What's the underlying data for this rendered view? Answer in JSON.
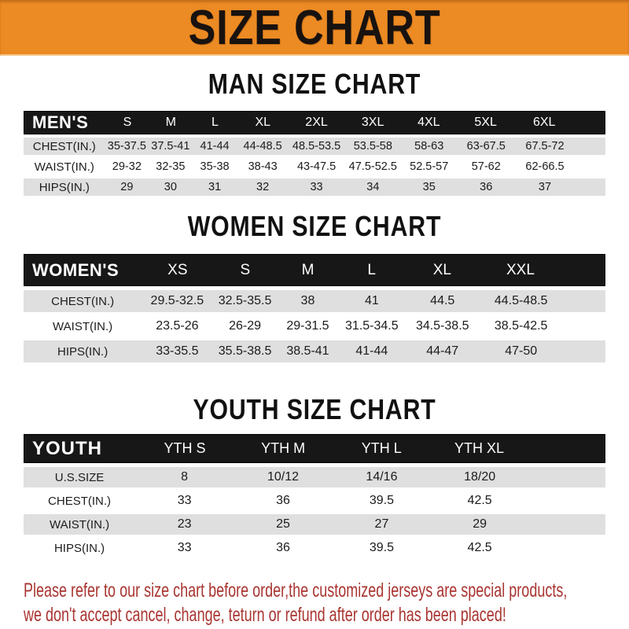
{
  "banner": {
    "title": "SIZE CHART",
    "bg_color": "#ec8a23",
    "text_color": "#181210"
  },
  "sections": [
    {
      "heading": "MAN SIZE CHART",
      "header_label": "MEN'S",
      "columns": [
        "S",
        "M",
        "L",
        "XL",
        "2XL",
        "3XL",
        "4XL",
        "5XL",
        "6XL"
      ],
      "rows": [
        {
          "label": "CHEST(IN.)",
          "values": [
            "35-37.5",
            "37.5-41",
            "41-44",
            "44-48.5",
            "48.5-53.5",
            "53.5-58",
            "58-63",
            "63-67.5",
            "67.5-72"
          ]
        },
        {
          "label": "WAIST(IN.)",
          "values": [
            "29-32",
            "32-35",
            "35-38",
            "38-43",
            "43-47.5",
            "47.5-52.5",
            "52.5-57",
            "57-62",
            "62-66.5"
          ]
        },
        {
          "label": "HIPS(IN.)",
          "values": [
            "29",
            "30",
            "31",
            "32",
            "33",
            "34",
            "35",
            "36",
            "37"
          ]
        }
      ]
    },
    {
      "heading": "WOMEN SIZE CHART",
      "header_label": "WOMEN'S",
      "columns": [
        "XS",
        "S",
        "M",
        "L",
        "XL",
        "XXL"
      ],
      "rows": [
        {
          "label": "CHEST(IN.)",
          "values": [
            "29.5-32.5",
            "32.5-35.5",
            "38",
            "41",
            "44.5",
            "44.5-48.5"
          ]
        },
        {
          "label": "WAIST(IN.)",
          "values": [
            "23.5-26",
            "26-29",
            "29-31.5",
            "31.5-34.5",
            "34.5-38.5",
            "38.5-42.5"
          ]
        },
        {
          "label": "HIPS(IN.)",
          "values": [
            "33-35.5",
            "35.5-38.5",
            "38.5-41",
            "41-44",
            "44-47",
            "47-50"
          ]
        }
      ]
    },
    {
      "heading": "YOUTH SIZE CHART",
      "header_label": "YOUTH",
      "columns": [
        "YTH S",
        "YTH M",
        "YTH L",
        "YTH XL"
      ],
      "rows": [
        {
          "label": "U.S.SIZE",
          "values": [
            "8",
            "10/12",
            "14/16",
            "18/20"
          ]
        },
        {
          "label": "CHEST(IN.)",
          "values": [
            "33",
            "36",
            "39.5",
            "42.5"
          ]
        },
        {
          "label": "WAIST(IN.)",
          "values": [
            "23",
            "25",
            "27",
            "29"
          ]
        },
        {
          "label": "HIPS(IN.)",
          "values": [
            "33",
            "36",
            "39.5",
            "42.5"
          ]
        }
      ]
    }
  ],
  "footer": {
    "line1": "Please refer to our size chart before order,the customized jerseys are special products,",
    "line2": "we don't accept cancel, change, teturn or refund after order has been placed!",
    "text_color": "#a93531"
  },
  "colors": {
    "banner_orange": "#ec8a23",
    "table_header_black": "#171717",
    "row_gray": "#dfdfdf",
    "footer_red": "#a93531"
  }
}
